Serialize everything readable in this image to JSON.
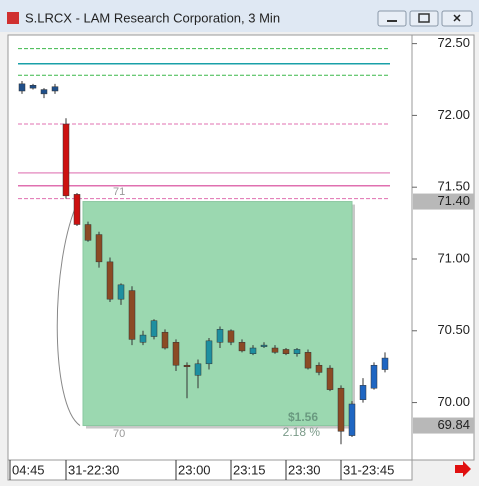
{
  "chart_data": {
    "type": "candlestick",
    "title": "S.LRCX - LAM Research Corporation, 3 Min",
    "categories": [
      "04:45",
      null,
      null,
      null,
      "31-22:30",
      null,
      null,
      null,
      null,
      null,
      null,
      null,
      null,
      null,
      "23:00",
      null,
      null,
      null,
      null,
      "23:15",
      null,
      null,
      null,
      null,
      "23:30",
      null,
      null,
      null,
      null,
      "31-23:45",
      null,
      null,
      null,
      null
    ],
    "open": [
      72.17,
      72.21,
      72.18,
      72.17,
      71.94,
      71.45,
      71.24,
      71.17,
      70.98,
      70.72,
      70.78,
      70.42,
      70.46,
      70.49,
      70.42,
      70.26,
      70.19,
      70.27,
      70.42,
      70.5,
      70.42,
      70.34,
      70.39,
      70.38,
      70.37,
      70.34,
      70.35,
      70.26,
      70.24,
      70.1,
      69.77,
      70.02,
      70.1,
      70.23
    ],
    "high": [
      72.24,
      72.22,
      72.19,
      72.22,
      71.98,
      71.46,
      71.26,
      71.19,
      71.01,
      70.83,
      70.81,
      70.5,
      70.58,
      70.51,
      70.44,
      70.28,
      70.3,
      70.45,
      70.53,
      70.51,
      70.44,
      70.4,
      70.42,
      70.4,
      70.38,
      70.38,
      70.37,
      70.28,
      70.26,
      70.12,
      70.01,
      70.17,
      70.28,
      70.35
    ],
    "low": [
      72.15,
      72.18,
      72.12,
      72.15,
      71.42,
      71.23,
      71.12,
      70.94,
      70.7,
      70.68,
      70.4,
      70.4,
      70.44,
      70.37,
      70.22,
      70.03,
      70.1,
      70.23,
      70.38,
      70.4,
      70.35,
      70.33,
      70.38,
      70.34,
      70.33,
      70.32,
      70.23,
      70.19,
      70.08,
      69.71,
      69.76,
      70.0,
      70.09,
      70.21
    ],
    "close": [
      72.22,
      72.19,
      72.15,
      72.2,
      71.44,
      71.24,
      71.13,
      70.98,
      70.72,
      70.82,
      70.44,
      70.47,
      70.57,
      70.38,
      70.26,
      70.25,
      70.27,
      70.43,
      70.51,
      70.42,
      70.36,
      70.38,
      70.4,
      70.35,
      70.34,
      70.37,
      70.24,
      70.21,
      70.09,
      69.8,
      69.99,
      70.12,
      70.26,
      70.31
    ],
    "colors": [
      "#1f4f8a",
      "#1f4f8a",
      "#1f4f8a",
      "#1f4f8a",
      "#cc1111",
      "#cc1111",
      "#8b4a24",
      "#8b4a24",
      "#8b4a24",
      "#1e8fa0",
      "#8b4a24",
      "#1e8fa0",
      "#1e8fa0",
      "#8b4a24",
      "#8b4a24",
      "#8b4a24",
      "#1e8fa0",
      "#1e8fa0",
      "#1e8fa0",
      "#8b4a24",
      "#8b4a24",
      "#1e8fa0",
      "#1e8fa0",
      "#8b4a24",
      "#8b4a24",
      "#1e8fa0",
      "#8b4a24",
      "#8b4a24",
      "#8b4a24",
      "#8b4a24",
      "#1f66c2",
      "#1f66c2",
      "#1f66c2",
      "#1f66c2"
    ],
    "ylim": [
      69.6,
      72.56
    ],
    "yticks": [
      {
        "value": 72.5,
        "label": "72.50"
      },
      {
        "value": 72.0,
        "label": "72.00"
      },
      {
        "value": 71.5,
        "label": "71.50"
      },
      {
        "value": 71.0,
        "label": "71.00"
      },
      {
        "value": 70.5,
        "label": "70.50"
      },
      {
        "value": 70.0,
        "label": "70.00"
      }
    ],
    "price_markers": [
      {
        "value": 71.4,
        "label": "71.40"
      },
      {
        "value": 69.84,
        "label": "69.84"
      }
    ],
    "reference_lines": [
      {
        "value": 72.465,
        "color": "#3cb84a",
        "dashed": true
      },
      {
        "value": 72.36,
        "color": "#1aa0a8",
        "dashed": false
      },
      {
        "value": 72.28,
        "color": "#3cb84a",
        "dashed": true
      },
      {
        "value": 71.94,
        "color": "#e070b0",
        "dashed": true
      },
      {
        "value": 71.6,
        "color": "#e89ac8",
        "dashed": false
      },
      {
        "value": 71.51,
        "color": "#e070b0",
        "dashed": false
      },
      {
        "value": 71.42,
        "color": "#e070b0",
        "dashed": true
      }
    ],
    "measure": {
      "start": 71.4,
      "end": 69.84,
      "change_label": "$1.56",
      "percent_label": "2.18 %"
    },
    "annotations": [
      "71",
      "70"
    ]
  }
}
